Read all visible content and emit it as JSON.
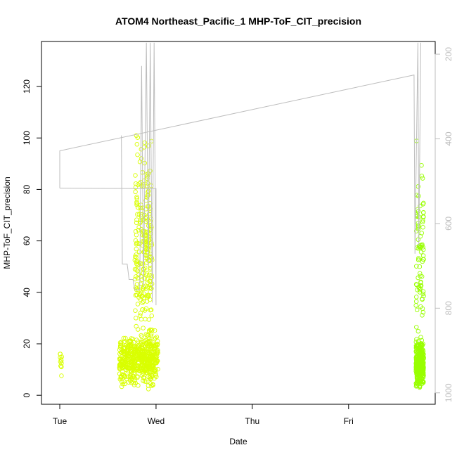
{
  "chart_data": {
    "type": "scatter",
    "title": "ATOM4 Northeast_Pacific_1 MHP-ToF_CIT_precision",
    "xlabel": "Date",
    "ylabel": "MHP-ToF_CIT_precision",
    "x_ticks": [
      "Tue",
      "Wed",
      "Thu",
      "Fri"
    ],
    "x_range_days": [
      -0.19,
      3.9
    ],
    "ylim": [
      -3.5,
      137.5
    ],
    "y_ticks": [
      0,
      20,
      40,
      60,
      80,
      100,
      120
    ],
    "y2_ticks": [
      200,
      400,
      600,
      800,
      1000
    ],
    "y2lim_reversed": [
      1027,
      170
    ],
    "grid": false,
    "legend": "none",
    "colors": {
      "points_early": "#d9ff00",
      "points_late": "#99ff00",
      "pressure_line": "#bdbdbd",
      "axes": "#000000"
    },
    "series": [
      {
        "kind": "points",
        "clusters": [
          {
            "x_day_range": [
              0.0,
              0.02
            ],
            "y_center": 13,
            "y_spread": 6,
            "count": 12
          },
          {
            "x_day_range": [
              0.62,
              1.02
            ],
            "y_center": 14,
            "y_spread": 9,
            "count": 520
          },
          {
            "x_day_range": [
              0.78,
              0.96
            ],
            "y_center": 55,
            "y_spread": 40,
            "count": 260
          },
          {
            "x_day_range": [
              3.7,
              3.78
            ],
            "y_center": 12,
            "y_spread": 8,
            "count": 300
          },
          {
            "x_day_range": [
              3.7,
              3.78
            ],
            "y_center": 55,
            "y_spread": 40,
            "count": 90
          }
        ]
      },
      {
        "kind": "line",
        "name_axis": "pressure",
        "values_y_left_units": [
          [
            0.0,
            80.5
          ],
          [
            0.0,
            95
          ],
          [
            3.68,
            124.5
          ],
          [
            3.69,
            55
          ],
          [
            3.72,
            137
          ],
          [
            3.73,
            58
          ],
          [
            3.75,
            137
          ]
        ],
        "early_segment": [
          [
            0.0,
            80.5
          ],
          [
            1.0,
            80.3
          ],
          [
            1.0,
            35
          ],
          [
            0.98,
            137
          ],
          [
            0.96,
            36
          ],
          [
            0.94,
            137
          ],
          [
            0.92,
            50
          ],
          [
            0.9,
            137
          ],
          [
            0.87,
            42
          ],
          [
            0.85,
            128
          ],
          [
            0.83,
            41
          ],
          [
            0.78,
            41
          ],
          [
            0.76,
            45
          ],
          [
            0.72,
            45
          ],
          [
            0.7,
            51
          ],
          [
            0.65,
            51
          ],
          [
            0.64,
            101
          ]
        ]
      }
    ]
  }
}
